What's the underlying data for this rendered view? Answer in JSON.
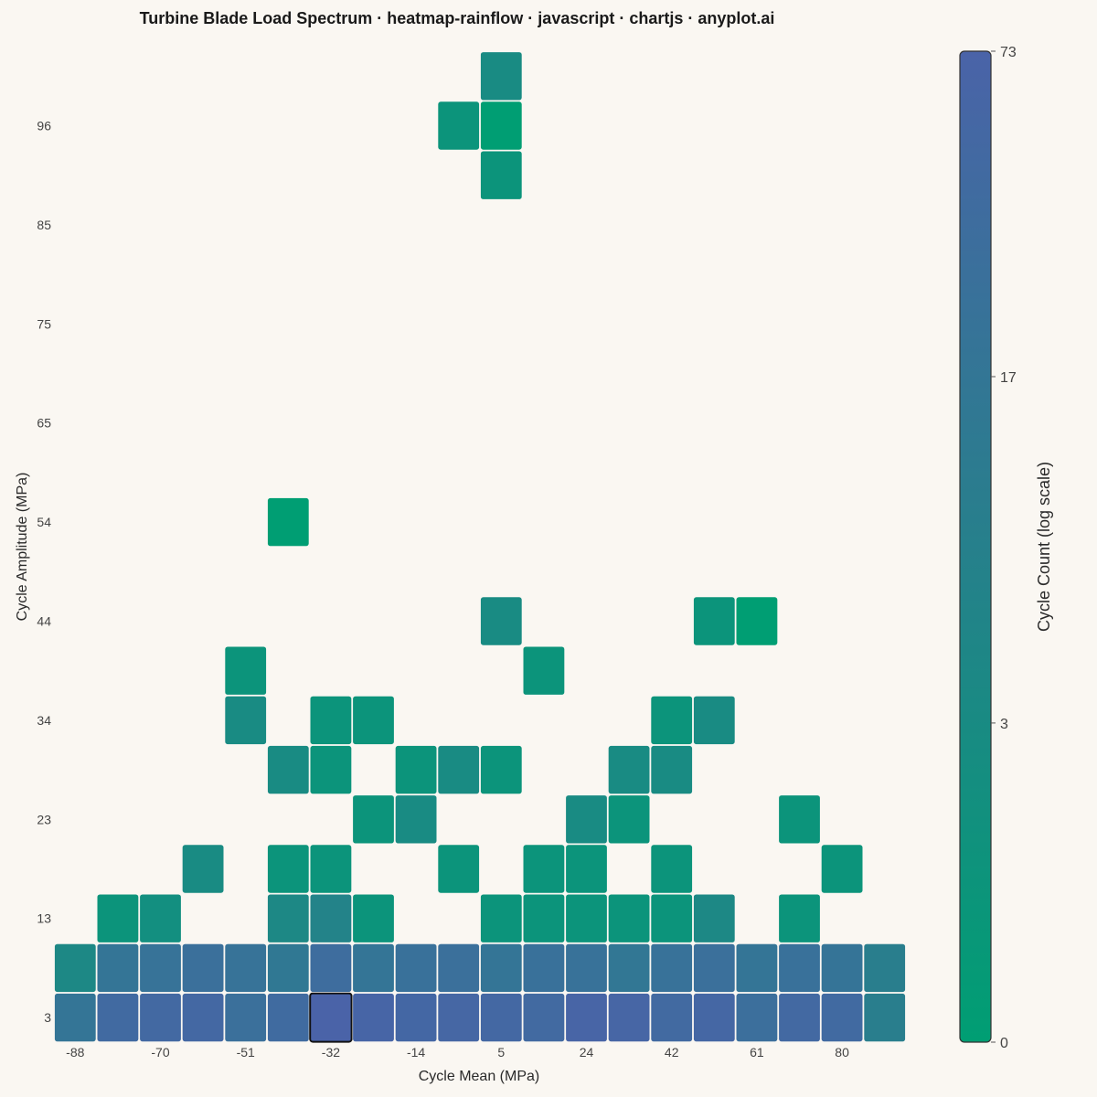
{
  "chart_data": {
    "type": "heatmap",
    "title": "Turbine Blade Load Spectrum · heatmap-rainflow · javascript · chartjs · anyplot.ai",
    "xlabel": "Cycle Mean (MPa)",
    "ylabel": "Cycle Amplitude (MPa)",
    "x_tick_labels": [
      "-88",
      "-70",
      "-51",
      "-32",
      "-14",
      "5",
      "24",
      "42",
      "61",
      "80"
    ],
    "y_tick_labels": [
      "3",
      "13",
      "23",
      "34",
      "44",
      "54",
      "65",
      "75",
      "85",
      "96"
    ],
    "colorbar": {
      "label": "Cycle Count (log scale)",
      "scale": "log",
      "ticks": [
        "0",
        "3",
        "17",
        "73"
      ],
      "max": 73,
      "low_color": "#009E73",
      "high_color": "#4A63A8"
    },
    "x_bin_centers": [
      -88,
      -79,
      -70,
      -60,
      -51,
      -42,
      -32,
      -23,
      -14,
      -5,
      5,
      14,
      24,
      33,
      42,
      52,
      61,
      71,
      80,
      89
    ],
    "y_bin_centers": [
      3,
      8,
      13,
      18,
      23,
      29,
      34,
      39,
      44,
      49,
      54,
      60,
      65,
      70,
      75,
      80,
      85,
      91,
      96,
      101
    ],
    "cells": [
      {
        "mean": -88,
        "amp": 3,
        "count": 18
      },
      {
        "mean": -79,
        "amp": 3,
        "count": 42
      },
      {
        "mean": -70,
        "amp": 3,
        "count": 46
      },
      {
        "mean": -60,
        "amp": 3,
        "count": 50
      },
      {
        "mean": -51,
        "amp": 3,
        "count": 28
      },
      {
        "mean": -42,
        "amp": 3,
        "count": 40
      },
      {
        "mean": -32,
        "amp": 3,
        "count": 73,
        "highlight": true
      },
      {
        "mean": -23,
        "amp": 3,
        "count": 62
      },
      {
        "mean": -14,
        "amp": 3,
        "count": 52
      },
      {
        "mean": -5,
        "amp": 3,
        "count": 56
      },
      {
        "mean": 5,
        "amp": 3,
        "count": 50
      },
      {
        "mean": 14,
        "amp": 3,
        "count": 44
      },
      {
        "mean": 24,
        "amp": 3,
        "count": 65
      },
      {
        "mean": 33,
        "amp": 3,
        "count": 60
      },
      {
        "mean": 42,
        "amp": 3,
        "count": 44
      },
      {
        "mean": 52,
        "amp": 3,
        "count": 55
      },
      {
        "mean": 61,
        "amp": 3,
        "count": 30
      },
      {
        "mean": 71,
        "amp": 3,
        "count": 48
      },
      {
        "mean": 80,
        "amp": 3,
        "count": 42
      },
      {
        "mean": 89,
        "amp": 3,
        "count": 9
      },
      {
        "mean": -88,
        "amp": 8,
        "count": 4
      },
      {
        "mean": -79,
        "amp": 8,
        "count": 18
      },
      {
        "mean": -70,
        "amp": 8,
        "count": 22
      },
      {
        "mean": -60,
        "amp": 8,
        "count": 28
      },
      {
        "mean": -51,
        "amp": 8,
        "count": 22
      },
      {
        "mean": -42,
        "amp": 8,
        "count": 14
      },
      {
        "mean": -32,
        "amp": 8,
        "count": 34
      },
      {
        "mean": -23,
        "amp": 8,
        "count": 18
      },
      {
        "mean": -14,
        "amp": 8,
        "count": 26
      },
      {
        "mean": -5,
        "amp": 8,
        "count": 28
      },
      {
        "mean": 5,
        "amp": 8,
        "count": 18
      },
      {
        "mean": 14,
        "amp": 8,
        "count": 26
      },
      {
        "mean": 24,
        "amp": 8,
        "count": 24
      },
      {
        "mean": 33,
        "amp": 8,
        "count": 16
      },
      {
        "mean": 42,
        "amp": 8,
        "count": 24
      },
      {
        "mean": 52,
        "amp": 8,
        "count": 28
      },
      {
        "mean": 61,
        "amp": 8,
        "count": 18
      },
      {
        "mean": 71,
        "amp": 8,
        "count": 26
      },
      {
        "mean": 80,
        "amp": 8,
        "count": 20
      },
      {
        "mean": 89,
        "amp": 8,
        "count": 9
      },
      {
        "mean": -79,
        "amp": 13,
        "count": 1
      },
      {
        "mean": -70,
        "amp": 13,
        "count": 2
      },
      {
        "mean": -42,
        "amp": 13,
        "count": 4
      },
      {
        "mean": -32,
        "amp": 13,
        "count": 6
      },
      {
        "mean": -23,
        "amp": 13,
        "count": 1
      },
      {
        "mean": 5,
        "amp": 13,
        "count": 1
      },
      {
        "mean": 14,
        "amp": 13,
        "count": 1
      },
      {
        "mean": 24,
        "amp": 13,
        "count": 1
      },
      {
        "mean": 33,
        "amp": 13,
        "count": 1
      },
      {
        "mean": 42,
        "amp": 13,
        "count": 1
      },
      {
        "mean": 52,
        "amp": 13,
        "count": 4
      },
      {
        "mean": 71,
        "amp": 13,
        "count": 1
      },
      {
        "mean": -60,
        "amp": 18,
        "count": 3
      },
      {
        "mean": -42,
        "amp": 18,
        "count": 1
      },
      {
        "mean": -32,
        "amp": 18,
        "count": 1
      },
      {
        "mean": -5,
        "amp": 18,
        "count": 1
      },
      {
        "mean": 14,
        "amp": 18,
        "count": 1
      },
      {
        "mean": 24,
        "amp": 18,
        "count": 1
      },
      {
        "mean": 42,
        "amp": 18,
        "count": 1
      },
      {
        "mean": 80,
        "amp": 18,
        "count": 1
      },
      {
        "mean": -23,
        "amp": 23,
        "count": 1
      },
      {
        "mean": -14,
        "amp": 23,
        "count": 3
      },
      {
        "mean": 24,
        "amp": 23,
        "count": 3
      },
      {
        "mean": 33,
        "amp": 23,
        "count": 1
      },
      {
        "mean": 71,
        "amp": 23,
        "count": 1
      },
      {
        "mean": -42,
        "amp": 29,
        "count": 3
      },
      {
        "mean": -32,
        "amp": 29,
        "count": 1
      },
      {
        "mean": -14,
        "amp": 29,
        "count": 1
      },
      {
        "mean": -5,
        "amp": 29,
        "count": 3
      },
      {
        "mean": 5,
        "amp": 29,
        "count": 1
      },
      {
        "mean": 33,
        "amp": 29,
        "count": 3
      },
      {
        "mean": 42,
        "amp": 29,
        "count": 3
      },
      {
        "mean": -51,
        "amp": 34,
        "count": 3
      },
      {
        "mean": -32,
        "amp": 34,
        "count": 1
      },
      {
        "mean": -23,
        "amp": 34,
        "count": 1
      },
      {
        "mean": 42,
        "amp": 34,
        "count": 1
      },
      {
        "mean": 52,
        "amp": 34,
        "count": 3
      },
      {
        "mean": -51,
        "amp": 39,
        "count": 1
      },
      {
        "mean": 14,
        "amp": 39,
        "count": 1
      },
      {
        "mean": 5,
        "amp": 44,
        "count": 3
      },
      {
        "mean": 52,
        "amp": 44,
        "count": 1
      },
      {
        "mean": 61,
        "amp": 44,
        "count": 0
      },
      {
        "mean": -42,
        "amp": 54,
        "count": 0
      },
      {
        "mean": 5,
        "amp": 91,
        "count": 1
      },
      {
        "mean": -5,
        "amp": 96,
        "count": 1
      },
      {
        "mean": 5,
        "amp": 96,
        "count": 0
      },
      {
        "mean": 5,
        "amp": 101,
        "count": 3
      }
    ]
  }
}
